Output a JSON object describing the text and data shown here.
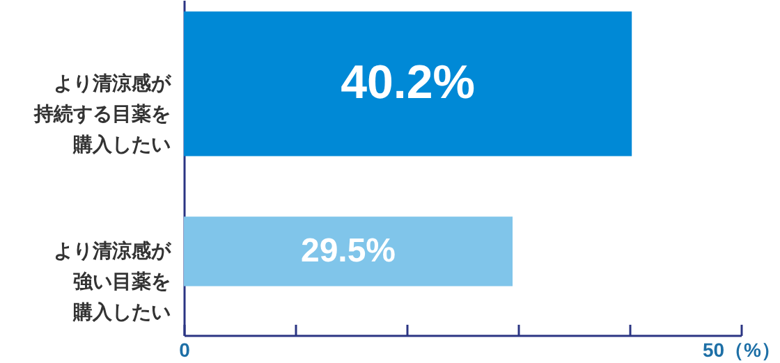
{
  "chart_data": {
    "type": "bar",
    "orientation": "horizontal",
    "categories": [
      "より清涼感が持続する目薬を購入したい",
      "より清涼感が強い目薬を購入したい"
    ],
    "values": [
      40.2,
      29.5
    ],
    "colors": [
      "#0089d6",
      "#80c5ea"
    ],
    "value_labels": [
      "40.2%",
      "29.5%"
    ],
    "xlim": [
      0,
      50
    ],
    "xticks": [
      0,
      {
        "value": 10,
        "label": null
      },
      {
        "value": 20,
        "label": null
      },
      {
        "value": 30,
        "label": null
      },
      {
        "value": 40,
        "label": null
      },
      {
        "value": 50,
        "label": "50（%）"
      }
    ],
    "grid": false
  }
}
